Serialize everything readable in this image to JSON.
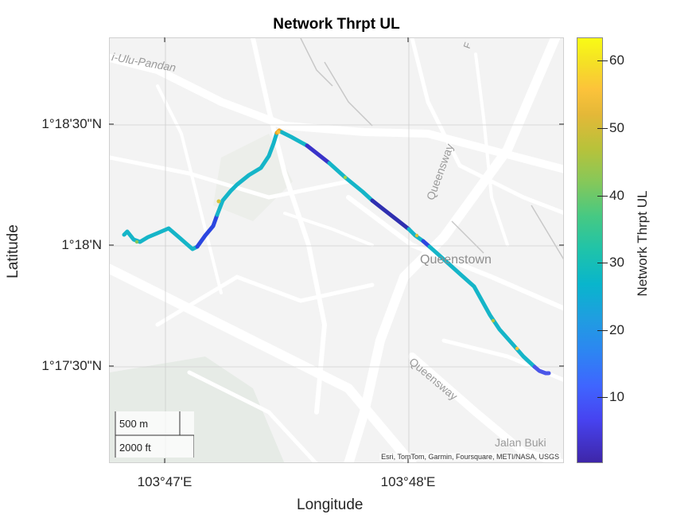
{
  "chart_data": {
    "type": "map-track",
    "title": "Network Thrpt UL",
    "xlabel": "Longitude",
    "ylabel": "Latitude",
    "x_ticks": [
      "103°47'E",
      "103°48'E"
    ],
    "y_ticks": [
      "1°18'30\"N",
      "1°18'N",
      "1°17'30\"N"
    ],
    "colorbar": {
      "label": "Network Thrpt UL",
      "range": [
        0,
        63
      ],
      "ticks": [
        "60",
        "50",
        "40",
        "30",
        "20",
        "10"
      ],
      "colormap": "parula"
    },
    "grid": true,
    "track_description": "Drive route colored mostly cyan (~28-32) with dark blue segments (~5-15) and occasional yellow/orange spikes",
    "track": [
      {
        "lon": 103.7785,
        "lat": 1.3007,
        "v": 28
      },
      {
        "lon": 103.779,
        "lat": 1.3005,
        "v": 30
      },
      {
        "lon": 103.7799,
        "lat": 1.3,
        "v": 29
      },
      {
        "lon": 103.7807,
        "lat": 1.3006,
        "v": 31
      },
      {
        "lon": 103.7825,
        "lat": 1.3013,
        "v": 28
      },
      {
        "lon": 103.7836,
        "lat": 1.2998,
        "v": 26
      },
      {
        "lon": 103.7849,
        "lat": 1.3009,
        "v": 8
      },
      {
        "lon": 103.7857,
        "lat": 1.303,
        "v": 12
      },
      {
        "lon": 103.7873,
        "lat": 1.3055,
        "v": 30
      },
      {
        "lon": 103.7899,
        "lat": 1.3079,
        "v": 29
      },
      {
        "lon": 103.7914,
        "lat": 1.3096,
        "v": 31
      },
      {
        "lon": 103.792,
        "lat": 1.3095,
        "v": 50
      },
      {
        "lon": 103.7938,
        "lat": 1.3088,
        "v": 10
      },
      {
        "lon": 103.7964,
        "lat": 1.3065,
        "v": 30
      },
      {
        "lon": 103.799,
        "lat": 1.3042,
        "v": 8
      },
      {
        "lon": 103.8006,
        "lat": 1.3023,
        "v": 29
      },
      {
        "lon": 103.803,
        "lat": 1.2995,
        "v": 30
      },
      {
        "lon": 103.8052,
        "lat": 1.297,
        "v": 29
      },
      {
        "lon": 103.8073,
        "lat": 1.2945,
        "v": 33
      },
      {
        "lon": 103.8088,
        "lat": 1.2928,
        "v": 15
      },
      {
        "lon": 103.8096,
        "lat": 1.2926,
        "v": 8
      }
    ]
  },
  "map_labels": {
    "ulu_pandan": "i-Ulu-Pandan",
    "queensway_north": "Queensway",
    "queensway_south": "Queensway",
    "queenstown": "Queenstown",
    "jalan_bukit": "Jalan Buki",
    "east_road": "F"
  },
  "scalebar": {
    "metric": "500 m",
    "imperial": "2000 ft"
  },
  "attribution": "Esri, TomTom, Garmin, Foursquare, METI/NASA, USGS"
}
